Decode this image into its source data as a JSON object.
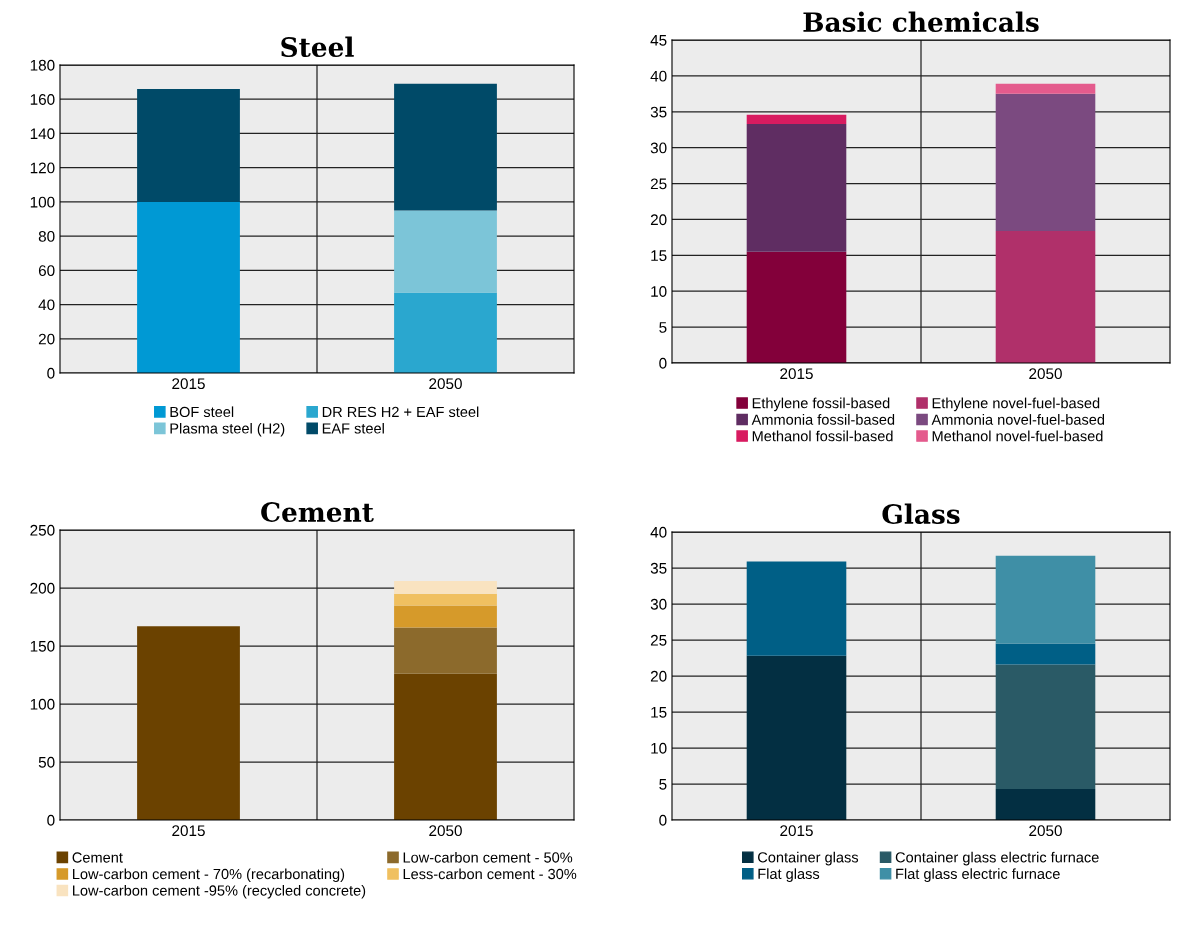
{
  "chart_data": [
    {
      "type": "bar",
      "title": "Steel",
      "categories": [
        "2015",
        "2050"
      ],
      "stacked": true,
      "ylim": [
        0,
        180
      ],
      "yticks": [
        0,
        20,
        40,
        60,
        80,
        100,
        120,
        140,
        160,
        180
      ],
      "grid": true,
      "legend": "bottom",
      "series": [
        {
          "name": "BOF steel",
          "color": "#0099d4",
          "values": [
            100,
            0
          ]
        },
        {
          "name": "DR RES H2 + EAF steel",
          "color": "#2aa7cf",
          "values": [
            0,
            47
          ]
        },
        {
          "name": "Plasma steel (H2)",
          "color": "#7cc5d8",
          "values": [
            0,
            48
          ]
        },
        {
          "name": "EAF steel",
          "color": "#004a68",
          "values": [
            66,
            74
          ]
        }
      ]
    },
    {
      "type": "bar",
      "title": "Basic chemicals",
      "categories": [
        "2015",
        "2050"
      ],
      "stacked": true,
      "ylim": [
        0,
        45
      ],
      "yticks": [
        0,
        5,
        10,
        15,
        20,
        25,
        30,
        35,
        40,
        45
      ],
      "grid": true,
      "legend": "bottom",
      "series": [
        {
          "name": "Ethylene fossil-based",
          "color": "#83003a",
          "values": [
            15.5,
            0
          ]
        },
        {
          "name": "Ethylene novel-fuel-based",
          "color": "#b0306a",
          "values": [
            0,
            18.4
          ]
        },
        {
          "name": "Ammonia fossil-based",
          "color": "#5f2d62",
          "values": [
            17.8,
            0
          ]
        },
        {
          "name": "Ammonia novel-fuel-based",
          "color": "#7b4a80",
          "values": [
            0,
            19.1
          ]
        },
        {
          "name": "Methanol fossil-based",
          "color": "#d81b60",
          "values": [
            1.3,
            0
          ]
        },
        {
          "name": "Methanol novel-fuel-based",
          "color": "#e45b8d",
          "values": [
            0,
            1.4
          ]
        }
      ]
    },
    {
      "type": "bar",
      "title": "Cement",
      "categories": [
        "2015",
        "2050"
      ],
      "stacked": true,
      "ylim": [
        0,
        250
      ],
      "yticks": [
        0,
        50,
        100,
        150,
        200,
        250
      ],
      "grid": true,
      "legend": "bottom",
      "series": [
        {
          "name": "Cement",
          "color": "#6b4200",
          "values": [
            167,
            126
          ]
        },
        {
          "name": "Low-carbon cement - 50%",
          "color": "#8c6a2c",
          "values": [
            0,
            40
          ]
        },
        {
          "name": "Low-carbon cement - 70% (recarbonating)",
          "color": "#d69a2a",
          "values": [
            0,
            19
          ]
        },
        {
          "name": "Less-carbon cement - 30%",
          "color": "#f0c060",
          "values": [
            0,
            10
          ]
        },
        {
          "name": "Low-carbon cement -95% (recycled concrete)",
          "color": "#f9e3c0",
          "values": [
            0,
            11
          ]
        }
      ]
    },
    {
      "type": "bar",
      "title": "Glass",
      "categories": [
        "2015",
        "2050"
      ],
      "stacked": true,
      "ylim": [
        0,
        40
      ],
      "yticks": [
        0,
        5,
        10,
        15,
        20,
        25,
        30,
        35,
        40
      ],
      "grid": true,
      "legend": "bottom",
      "series": [
        {
          "name": "Container glass",
          "color": "#032f42",
          "values": [
            22.8,
            4.3
          ]
        },
        {
          "name": "Container glass electric furnace",
          "color": "#2a5a66",
          "values": [
            0,
            17.3
          ]
        },
        {
          "name": "Flat glass",
          "color": "#005f86",
          "values": [
            13.1,
            2.9
          ]
        },
        {
          "name": "Flat glass electric furnace",
          "color": "#3f8fa6",
          "values": [
            0,
            12.2
          ]
        }
      ]
    }
  ]
}
